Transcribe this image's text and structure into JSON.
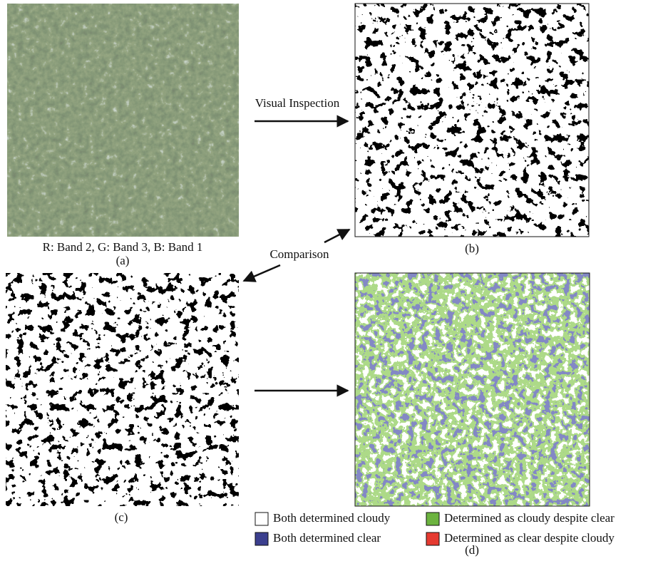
{
  "figure": {
    "panels": [
      {
        "label": "(a)",
        "caption": "R: Band 2, G: Band 3, B: Band 1"
      },
      {
        "label": "(b)"
      },
      {
        "label": "(c)"
      },
      {
        "label": "(d)"
      }
    ],
    "arrows": {
      "top": "Visual Inspection",
      "middle": "Comparison"
    },
    "legend": [
      {
        "name": "Both determined cloudy",
        "color": "#ffffff"
      },
      {
        "name": "Determined as cloudy despite clear",
        "color": "#6cb33f"
      },
      {
        "name": "Both determined clear",
        "color": "#3b3f8e"
      },
      {
        "name": "Determined as clear despite cloudy",
        "color": "#e53a30"
      }
    ]
  }
}
